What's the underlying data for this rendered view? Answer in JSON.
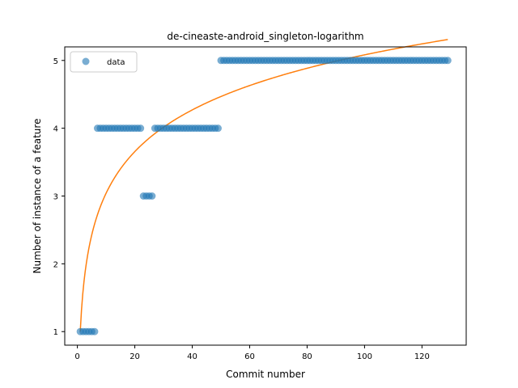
{
  "chart_data": {
    "type": "scatter",
    "title": "de-cineaste-android_singleton-logarithm",
    "xlabel": "Commit number",
    "ylabel": "Number of instance of a feature",
    "xlim": [
      -4.4,
      135.4
    ],
    "ylim": [
      0.8,
      5.2
    ],
    "x_ticks": [
      0,
      20,
      40,
      60,
      80,
      100,
      120
    ],
    "y_ticks": [
      1,
      2,
      3,
      4,
      5
    ],
    "grid": false,
    "legend": {
      "placement": "upper-left",
      "entries": [
        "data"
      ]
    },
    "series": [
      {
        "name": "data",
        "kind": "points",
        "color": "#1f77b4",
        "segments": [
          {
            "x_from": 1,
            "x_to": 6,
            "y": 1
          },
          {
            "x_from": 7,
            "x_to": 22,
            "y": 4
          },
          {
            "x_from": 23,
            "x_to": 26,
            "y": 3
          },
          {
            "x_from": 27,
            "x_to": 49,
            "y": 4
          },
          {
            "x_from": 50,
            "x_to": 129,
            "y": 5
          }
        ]
      },
      {
        "kind": "line",
        "color": "#ff7f0e",
        "model": "logarithmic",
        "a": 1.0,
        "b": 0.8865,
        "x_range": [
          1,
          129
        ]
      }
    ]
  }
}
